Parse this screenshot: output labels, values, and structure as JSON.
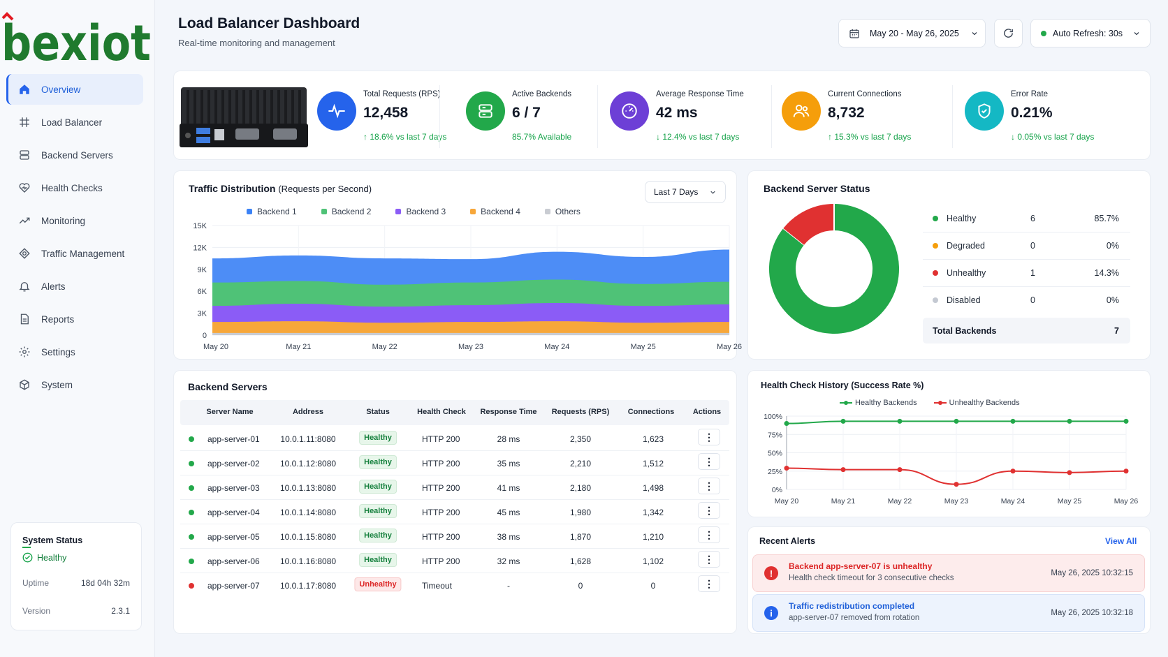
{
  "brand": {
    "logo_text": "bexiot"
  },
  "sidebar": {
    "items": [
      {
        "label": "Overview",
        "icon": "home-icon"
      },
      {
        "label": "Load Balancer",
        "icon": "load-balancer-icon"
      },
      {
        "label": "Backend Servers",
        "icon": "servers-icon"
      },
      {
        "label": "Health Checks",
        "icon": "heart-icon"
      },
      {
        "label": "Monitoring",
        "icon": "trend-icon"
      },
      {
        "label": "Traffic Management",
        "icon": "traffic-icon"
      },
      {
        "label": "Alerts",
        "icon": "bell-icon"
      },
      {
        "label": "Reports",
        "icon": "document-icon"
      },
      {
        "label": "Settings",
        "icon": "gear-icon"
      },
      {
        "label": "System",
        "icon": "cube-icon"
      }
    ],
    "system_status": {
      "title": "System Status",
      "state": "Healthy",
      "uptime_label": "Uptime",
      "uptime_value": "18d 04h 32m",
      "version_label": "Version",
      "version_value": "2.3.1"
    }
  },
  "header": {
    "title": "Load Balancer Dashboard",
    "subtitle": "Real-time monitoring and management",
    "date_range": "May 20 - May 26, 2025",
    "auto_refresh": "Auto Refresh: 30s"
  },
  "kpis": [
    {
      "label": "Total Requests (RPS)",
      "value": "12,458",
      "change": "↑ 18.6% vs last 7 days",
      "color": "#2563eb",
      "icon": "pulse-icon"
    },
    {
      "label": "Active Backends",
      "value": "6 / 7",
      "change": "85.7% Available",
      "color": "#22a84a",
      "icon": "server-stack-icon"
    },
    {
      "label": "Average Response Time",
      "value": "42 ms",
      "change": "↓ 12.4% vs last 7 days",
      "color": "#6d3fd6",
      "icon": "gauge-icon"
    },
    {
      "label": "Current Connections",
      "value": "8,732",
      "change": "↑ 15.3% vs last 7 days",
      "color": "#f59e0b",
      "icon": "users-icon"
    },
    {
      "label": "Error Rate",
      "value": "0.21%",
      "change": "↓ 0.05% vs last 7 days",
      "color": "#14b8c4",
      "icon": "shield-check-icon"
    }
  ],
  "traffic": {
    "title": "Traffic Distribution",
    "title_suffix": "(Requests per Second)",
    "range_select": "Last 7 Days"
  },
  "server_status": {
    "title": "Backend Server Status",
    "rows": [
      {
        "name": "Healthy",
        "count": "6",
        "pct": "85.7%",
        "color": "#22a84a"
      },
      {
        "name": "Degraded",
        "count": "0",
        "pct": "0%",
        "color": "#f59e0b"
      },
      {
        "name": "Unhealthy",
        "count": "1",
        "pct": "14.3%",
        "color": "#e03131"
      },
      {
        "name": "Disabled",
        "count": "0",
        "pct": "0%",
        "color": "#c4c9d2"
      }
    ],
    "total_label": "Total Backends",
    "total_value": "7"
  },
  "backend_table": {
    "title": "Backend Servers",
    "columns": [
      "Server Name",
      "Address",
      "Status",
      "Health Check",
      "Response Time",
      "Requests (RPS)",
      "Connections",
      "Actions"
    ],
    "rows": [
      {
        "name": "app-server-01",
        "address": "10.0.1.11:8080",
        "status": "Healthy",
        "health": "HTTP 200",
        "resp": "28 ms",
        "rps": "2,350",
        "conn": "1,623",
        "ok": true
      },
      {
        "name": "app-server-02",
        "address": "10.0.1.12:8080",
        "status": "Healthy",
        "health": "HTTP 200",
        "resp": "35 ms",
        "rps": "2,210",
        "conn": "1,512",
        "ok": true
      },
      {
        "name": "app-server-03",
        "address": "10.0.1.13:8080",
        "status": "Healthy",
        "health": "HTTP 200",
        "resp": "41 ms",
        "rps": "2,180",
        "conn": "1,498",
        "ok": true
      },
      {
        "name": "app-server-04",
        "address": "10.0.1.14:8080",
        "status": "Healthy",
        "health": "HTTP 200",
        "resp": "45 ms",
        "rps": "1,980",
        "conn": "1,342",
        "ok": true
      },
      {
        "name": "app-server-05",
        "address": "10.0.1.15:8080",
        "status": "Healthy",
        "health": "HTTP 200",
        "resp": "38 ms",
        "rps": "1,870",
        "conn": "1,210",
        "ok": true
      },
      {
        "name": "app-server-06",
        "address": "10.0.1.16:8080",
        "status": "Healthy",
        "health": "HTTP 200",
        "resp": "32 ms",
        "rps": "1,628",
        "conn": "1,102",
        "ok": true
      },
      {
        "name": "app-server-07",
        "address": "10.0.1.17:8080",
        "status": "Unhealthy",
        "health": "Timeout",
        "resp": "-",
        "rps": "0",
        "conn": "0",
        "ok": false
      }
    ]
  },
  "health_history": {
    "title": "Health Check History (Success Rate %)"
  },
  "recent_alerts": {
    "title": "Recent Alerts",
    "view_all": "View All",
    "items": [
      {
        "title": "Backend app-server-07 is unhealthy",
        "desc": "Health check timeout for 3 consecutive checks",
        "time": "May 26, 2025 10:32:15",
        "kind": "error"
      },
      {
        "title": "Traffic redistribution completed",
        "desc": "app-server-07 removed from rotation",
        "time": "May 26, 2025 10:32:18",
        "kind": "info"
      }
    ]
  },
  "chart_data": [
    {
      "type": "area",
      "title": "Traffic Distribution (Requests per Second)",
      "x": [
        "May 20",
        "May 21",
        "May 22",
        "May 23",
        "May 24",
        "May 25",
        "May 26"
      ],
      "y_ticks": [
        "0",
        "3K",
        "6K",
        "9K",
        "12K",
        "15K"
      ],
      "ylim": [
        0,
        15000
      ],
      "stacked": true,
      "legend": "top",
      "grid": true,
      "series": [
        {
          "name": "Others",
          "color": "#c9ccd2",
          "values": [
            300,
            300,
            300,
            300,
            300,
            300,
            300
          ]
        },
        {
          "name": "Backend 4",
          "color": "#f7a73a",
          "values": [
            1500,
            1600,
            1400,
            1500,
            1600,
            1400,
            1500
          ]
        },
        {
          "name": "Backend 3",
          "color": "#8b5cf6",
          "values": [
            2200,
            2400,
            2200,
            2300,
            2500,
            2300,
            2400
          ]
        },
        {
          "name": "Backend 2",
          "color": "#4fc277",
          "values": [
            3200,
            3100,
            3000,
            3100,
            3200,
            3000,
            3100
          ]
        },
        {
          "name": "Backend 1",
          "color": "#4d8df6",
          "values": [
            3300,
            3500,
            3600,
            3200,
            3800,
            3700,
            4400
          ]
        }
      ]
    },
    {
      "type": "pie",
      "title": "Backend Server Status",
      "categories": [
        "Healthy",
        "Degraded",
        "Unhealthy",
        "Disabled"
      ],
      "values": [
        6,
        0,
        1,
        0
      ],
      "colors": [
        "#22a84a",
        "#f59e0b",
        "#e03131",
        "#c4c9d2"
      ]
    },
    {
      "type": "line",
      "title": "Health Check History (Success Rate %)",
      "x": [
        "May 20",
        "May 21",
        "May 22",
        "May 23",
        "May 24",
        "May 25",
        "May 26"
      ],
      "y_ticks": [
        "0%",
        "25%",
        "50%",
        "75%",
        "100%"
      ],
      "ylim": [
        0,
        100
      ],
      "legend": "top",
      "grid": true,
      "series": [
        {
          "name": "Healthy Backends",
          "color": "#22a84a",
          "values": [
            90,
            93,
            93,
            93,
            93,
            93,
            93
          ]
        },
        {
          "name": "Unhealthy Backends",
          "color": "#e03131",
          "values": [
            29,
            27,
            27,
            7,
            25,
            23,
            25
          ]
        }
      ]
    }
  ]
}
